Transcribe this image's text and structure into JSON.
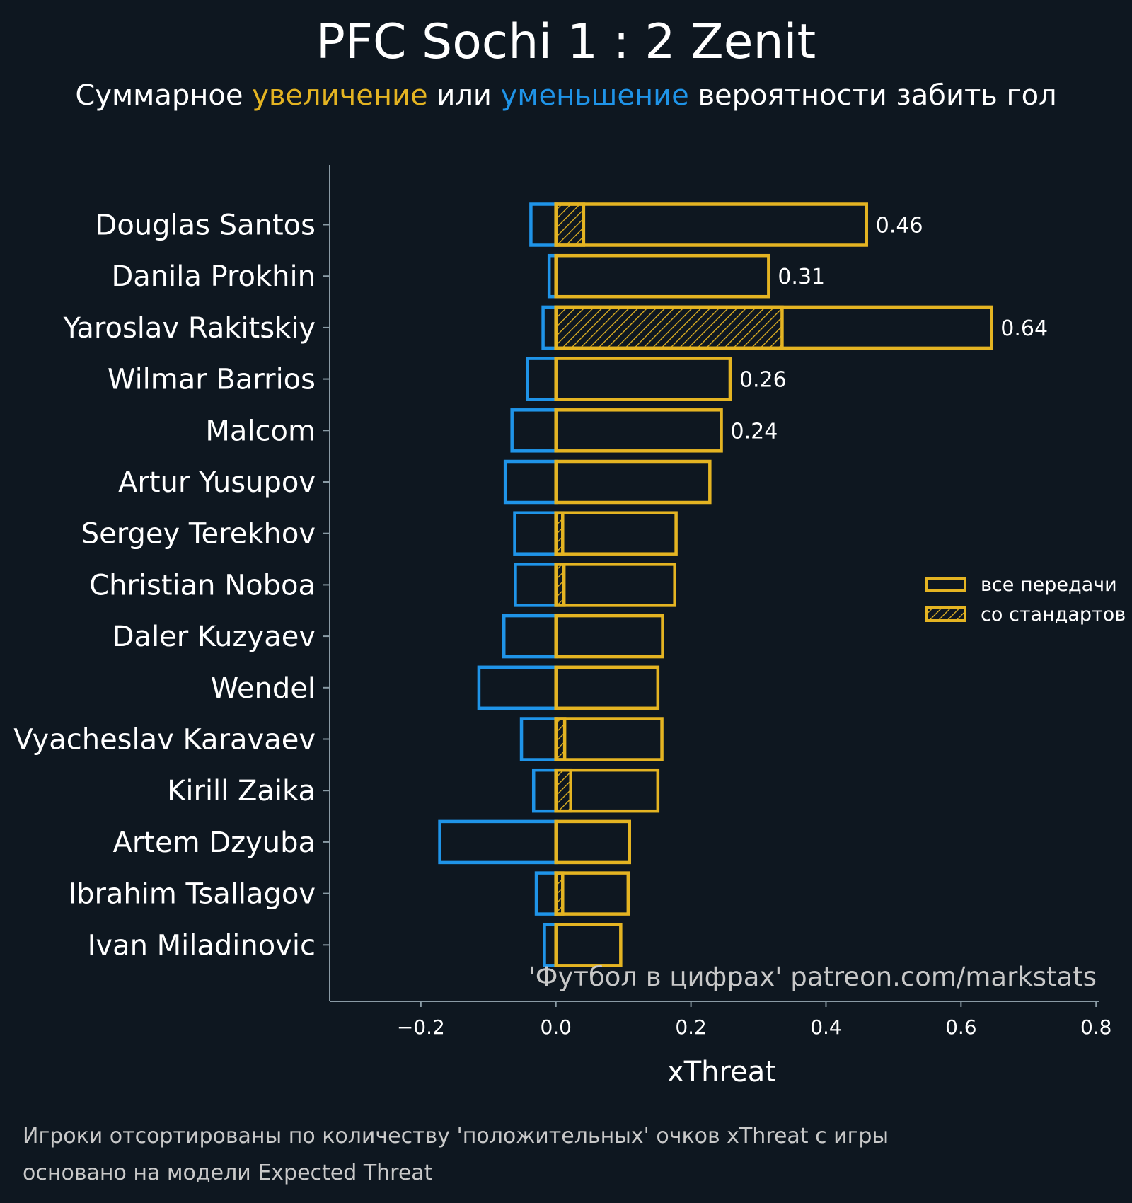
{
  "title": "PFC Sochi 1 : 2 Zenit",
  "subtitle": {
    "part1": "Суммарное ",
    "highlight_up": "увеличение",
    "part2": " или ",
    "highlight_down": "уменьшение",
    "part3": " вероятности забить гол"
  },
  "colors": {
    "background": "#0e1720",
    "positive": "#e4b422",
    "negative": "#1f94e8",
    "axis": "#8a9ba5",
    "text": "#ffffff"
  },
  "chart_data": {
    "type": "bar",
    "orientation": "horizontal",
    "categories": [
      "Douglas Santos",
      "Danila Prokhin",
      "Yaroslav Rakitskiy",
      "Wilmar Barrios",
      "Malcom",
      "Artur Yusupov",
      "Sergey Terekhov",
      "Christian Noboa",
      "Daler Kuzyaev",
      "Wendel",
      "Vyacheslav Karavaev",
      "Kirill Zaika",
      "Artem Dzyuba",
      "Ibrahim Tsallagov",
      "Ivan Miladinovic"
    ],
    "series": [
      {
        "name": "все передачи (positive)",
        "values": [
          0.46,
          0.315,
          0.645,
          0.258,
          0.245,
          0.228,
          0.178,
          0.176,
          0.158,
          0.151,
          0.157,
          0.151,
          0.109,
          0.107,
          0.096
        ]
      },
      {
        "name": "все передачи (negative)",
        "values": [
          -0.037,
          -0.01,
          -0.019,
          -0.042,
          -0.065,
          -0.075,
          -0.061,
          -0.06,
          -0.077,
          -0.114,
          -0.051,
          -0.033,
          -0.172,
          -0.029,
          -0.017
        ]
      },
      {
        "name": "со стандартов",
        "values": [
          0.041,
          0,
          0.335,
          0,
          0,
          0,
          0.01,
          0.012,
          0,
          0,
          0.013,
          0.022,
          0,
          0.01,
          0
        ]
      }
    ],
    "value_labels": [
      "0.46",
      "0.31",
      "0.64",
      "0.26",
      "0.24",
      "",
      "",
      "",
      "",
      "",
      "",
      "",
      "",
      "",
      ""
    ],
    "xlabel": "xThreat",
    "ylabel": "",
    "xlim": [
      -0.335,
      0.805
    ],
    "xticks": [
      -0.2,
      0.0,
      0.2,
      0.4,
      0.6,
      0.8
    ],
    "xtick_labels": [
      "−0.2",
      "0.0",
      "0.2",
      "0.4",
      "0.6",
      "0.8"
    ],
    "legend": {
      "position": "right",
      "items": [
        {
          "label": "все передачи",
          "hatch": false
        },
        {
          "label": "со стандартов",
          "hatch": true
        }
      ]
    },
    "watermark": "'Футбол в цифрах' patreon.com/markstats"
  },
  "footnote": {
    "line1": "Игроки отсортированы по количеству 'положительных' очков xThreat с игры",
    "line2": "основано на модели Expected Threat"
  }
}
